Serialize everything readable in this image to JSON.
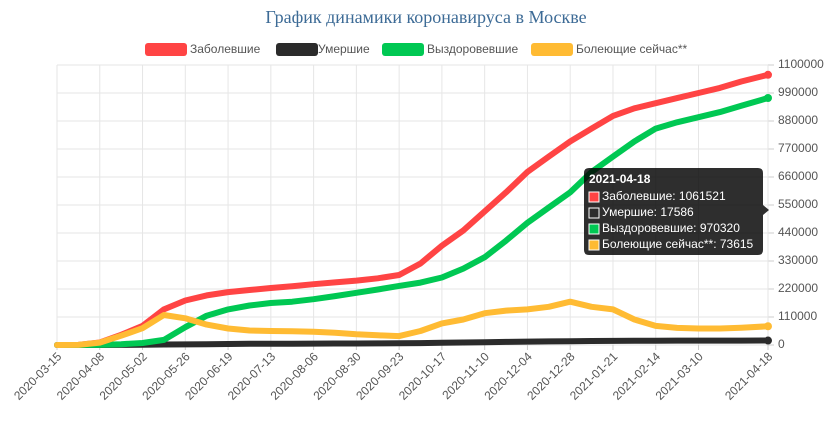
{
  "chart_data": {
    "type": "line",
    "title": "График динамики коронавируса в Москве",
    "x": [
      "2020-03-15",
      "2020-03-27",
      "2020-04-08",
      "2020-04-20",
      "2020-05-02",
      "2020-05-14",
      "2020-05-26",
      "2020-06-07",
      "2020-06-19",
      "2020-07-01",
      "2020-07-13",
      "2020-07-25",
      "2020-08-06",
      "2020-08-18",
      "2020-08-30",
      "2020-09-11",
      "2020-09-23",
      "2020-10-05",
      "2020-10-17",
      "2020-10-29",
      "2020-11-10",
      "2020-11-22",
      "2020-12-04",
      "2020-12-16",
      "2020-12-28",
      "2021-01-09",
      "2021-01-21",
      "2021-02-02",
      "2021-02-14",
      "2021-02-26",
      "2021-03-10",
      "2021-03-22",
      "2021-04-03",
      "2021-04-18"
    ],
    "series": [
      {
        "name": "Заболевшие",
        "color": "#ff4444",
        "values": [
          0,
          500,
          10000,
          40000,
          75000,
          140000,
          175000,
          195000,
          208000,
          216000,
          224000,
          231000,
          239000,
          246000,
          253000,
          262000,
          275000,
          320000,
          390000,
          450000,
          525000,
          600000,
          680000,
          740000,
          800000,
          850000,
          900000,
          930000,
          950000,
          970000,
          990000,
          1010000,
          1035000,
          1061521
        ]
      },
      {
        "name": "Умершие",
        "color": "#2b2b2b",
        "values": [
          0,
          0,
          50,
          400,
          900,
          1800,
          2500,
          3300,
          4000,
          4600,
          4900,
          5100,
          5400,
          5700,
          6000,
          6300,
          6700,
          7300,
          8500,
          9700,
          11000,
          12300,
          13500,
          14000,
          15000,
          15800,
          16300,
          16600,
          16900,
          17100,
          17250,
          17350,
          17450,
          17586
        ]
      },
      {
        "name": "Выздоровевшие",
        "color": "#00c853",
        "values": [
          0,
          0,
          500,
          3000,
          8000,
          20000,
          70000,
          115000,
          140000,
          155000,
          165000,
          170000,
          180000,
          192000,
          205000,
          218000,
          232000,
          245000,
          265000,
          300000,
          345000,
          410000,
          480000,
          540000,
          600000,
          680000,
          740000,
          800000,
          850000,
          875000,
          895000,
          915000,
          940000,
          970320
        ]
      },
      {
        "name": "Болеющие сейчас**",
        "color": "#ffbb33",
        "values": [
          0,
          500,
          9500,
          36600,
          66000,
          118000,
          105000,
          80000,
          65000,
          57000,
          55000,
          54000,
          52000,
          48000,
          42000,
          38000,
          35000,
          55000,
          85000,
          100000,
          125000,
          135000,
          140000,
          150000,
          170000,
          150000,
          140000,
          100000,
          75000,
          67000,
          65000,
          65000,
          68000,
          73615
        ]
      }
    ],
    "xlim": [
      "2020-03-15",
      "2021-04-18"
    ],
    "xticks": [
      "2020-03-15",
      "2020-04-08",
      "2020-05-02",
      "2020-05-26",
      "2020-06-19",
      "2020-07-13",
      "2020-08-06",
      "2020-08-30",
      "2020-09-23",
      "2020-10-17",
      "2020-11-10",
      "2020-12-04",
      "2020-12-28",
      "2021-01-21",
      "2021-02-14",
      "2021-03-10",
      "2021-04-18"
    ],
    "ylim": [
      0,
      1100000
    ],
    "yticks": [
      0,
      110000,
      220000,
      330000,
      440000,
      550000,
      660000,
      770000,
      880000,
      990000,
      1100000
    ],
    "grid": true,
    "tooltip": {
      "title": "2021-04-18",
      "lines": [
        "Заболевшие: 1061521",
        "Умершие: 17586",
        "Выздоровевшие: 970320",
        "Болеющие сейчас**: 73615"
      ]
    }
  }
}
